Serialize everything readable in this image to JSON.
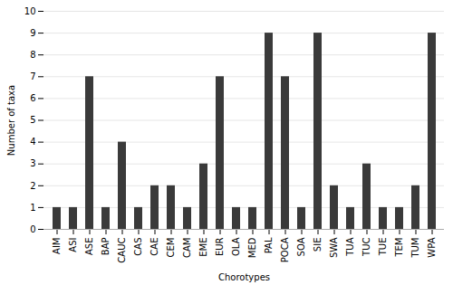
{
  "chart_data": {
    "type": "bar",
    "categories": [
      "AIM",
      "ASI",
      "ASE",
      "BAP",
      "CAUC",
      "CAS",
      "CAE",
      "CEM",
      "CAM",
      "EME",
      "EUR",
      "OLA",
      "MED",
      "PAL",
      "POCA",
      "SOA",
      "SIE",
      "SWA",
      "TUA",
      "TUC",
      "TUE",
      "TEM",
      "TUM",
      "WPA"
    ],
    "values": [
      1,
      1,
      7,
      1,
      4,
      1,
      2,
      2,
      1,
      3,
      7,
      1,
      1,
      9,
      7,
      1,
      9,
      2,
      1,
      3,
      1,
      1,
      2,
      9
    ],
    "color": "#3a3a3a",
    "xlabel": "Chorotypes",
    "ylabel": "Number of taxa",
    "ylim": [
      0,
      10
    ],
    "yticks": [
      0,
      1,
      2,
      3,
      4,
      5,
      6,
      7,
      8,
      9,
      10
    ],
    "grid": true
  }
}
